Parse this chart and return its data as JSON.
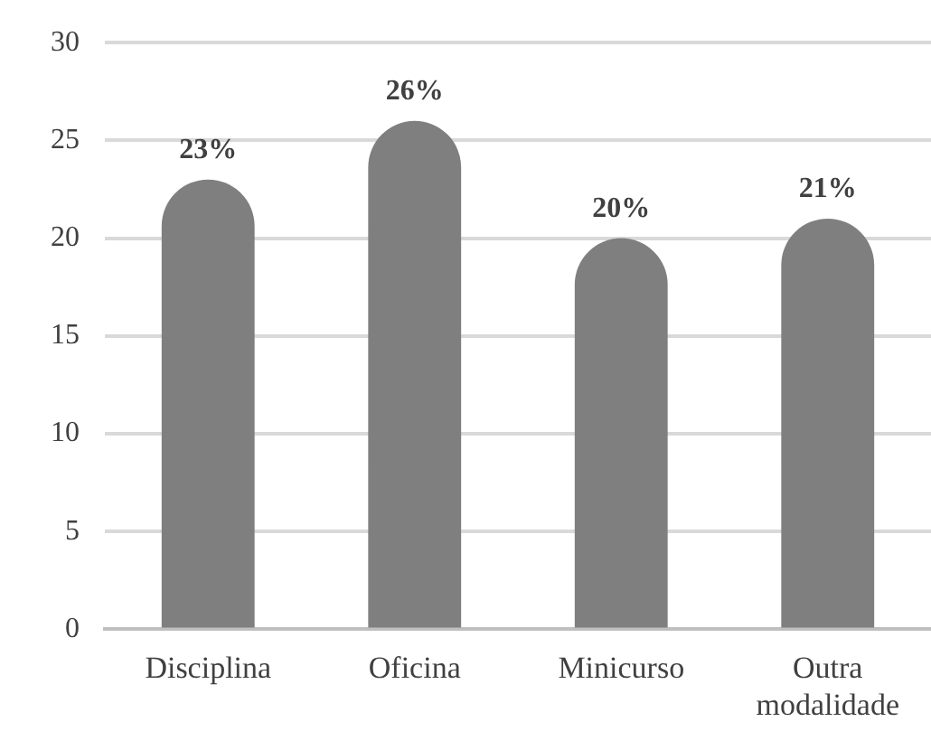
{
  "chart_data": {
    "type": "bar",
    "categories": [
      "Disciplina",
      "Oficina",
      "Minicurso",
      "Outra modalidade"
    ],
    "values": [
      23,
      26,
      20,
      21
    ],
    "color": "#7f7f7f",
    "value_labels": [
      "23%",
      "26%",
      "20%",
      "21%"
    ],
    "ylim": [
      0,
      30
    ],
    "yticks": [
      0,
      5,
      10,
      15,
      20,
      25,
      30
    ],
    "grid": "y"
  }
}
